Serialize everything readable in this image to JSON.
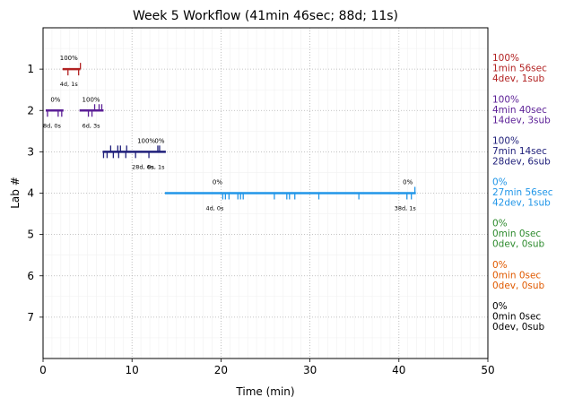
{
  "chart_data": {
    "type": "timeline",
    "title": "Week 5 Workflow (41min 46sec; 88d; 11s)",
    "xlabel": "Time (min)",
    "ylabel": "Lab #",
    "xlim": [
      0,
      50
    ],
    "ylim": [
      8,
      0
    ],
    "xticks": [
      0,
      10,
      20,
      30,
      40,
      50
    ],
    "yticks": [
      1,
      2,
      3,
      4,
      5,
      6,
      7
    ],
    "grid": true,
    "labs": [
      {
        "lab": 1,
        "color": "#b22222",
        "segments": [
          {
            "start": 2.2,
            "end": 4.2,
            "pct": "100%",
            "pct_at": 2.9,
            "note": "4d, 1s",
            "note_at": 2.9
          }
        ],
        "ticks_up": [
          4.2
        ],
        "ticks_down": [
          2.8,
          4.0
        ],
        "summary": [
          "100%",
          "1min 56sec",
          "4dev, 1sub"
        ]
      },
      {
        "lab": 2,
        "color": "#5b1f96",
        "segments": [
          {
            "start": 0.3,
            "end": 2.3,
            "pct": "0%",
            "pct_at": 1.4,
            "note": "8d, 0s",
            "note_at": 1.0
          },
          {
            "start": 4.1,
            "end": 6.8,
            "pct": "100%",
            "pct_at": 5.4,
            "note": "6d, 3s",
            "note_at": 5.4
          }
        ],
        "ticks_up": [
          5.8,
          6.3,
          6.6
        ],
        "ticks_down": [
          0.5,
          1.7,
          2.1,
          5.1,
          5.5
        ],
        "summary": [
          "100%",
          "4min 40sec",
          "14dev, 3sub"
        ]
      },
      {
        "lab": 3,
        "color": "#1f1f7a",
        "segments": [
          {
            "start": 6.7,
            "end": 13.8,
            "pct": "100%",
            "pct_at": 11.6,
            "note": "28d, 6s",
            "note_at": 11.2
          }
        ],
        "extra_labels": [
          {
            "pct": "0%",
            "pct_at": 13.1,
            "note": "0s, 1s",
            "note_at": 12.7
          }
        ],
        "ticks_up": [
          7.6,
          8.4,
          8.7,
          9.4,
          12.9,
          13.1
        ],
        "ticks_down": [
          6.8,
          7.2,
          7.9,
          8.5,
          9.3,
          10.4,
          11.9
        ],
        "summary": [
          "100%",
          "7min 14sec",
          "28dev, 6sub"
        ]
      },
      {
        "lab": 4,
        "color": "#2196e8",
        "segments": [
          {
            "start": 13.7,
            "end": 41.9,
            "pct": "0%",
            "pct_at": 19.6,
            "note": "4d, 0s",
            "note_at": 19.3
          },
          {
            "start": 41.9,
            "end": 41.9,
            "pct": "0%",
            "pct_at": 41.0,
            "note": "38d, 1s",
            "note_at": 40.7
          }
        ],
        "ticks_up": [
          41.8
        ],
        "ticks_down": [
          20.2,
          20.5,
          20.9,
          21.9,
          22.2,
          22.5,
          26.0,
          27.4,
          27.7,
          28.3,
          31.0,
          35.5,
          40.9,
          41.4
        ],
        "summary": [
          "0%",
          "27min 56sec",
          "42dev, 1sub"
        ]
      },
      {
        "lab": 5,
        "color": "#2e8b2e",
        "segments": [],
        "ticks_up": [],
        "ticks_down": [],
        "summary": [
          "0%",
          "0min 0sec",
          "0dev, 0sub"
        ]
      },
      {
        "lab": 6,
        "color": "#e05a00",
        "segments": [],
        "ticks_up": [],
        "ticks_down": [],
        "summary": [
          "0%",
          "0min 0sec",
          "0dev, 0sub"
        ]
      },
      {
        "lab": 7,
        "color": "#000000",
        "segments": [],
        "ticks_up": [],
        "ticks_down": [],
        "summary": [
          "0%",
          "0min 0sec",
          "0dev, 0sub"
        ]
      }
    ]
  }
}
